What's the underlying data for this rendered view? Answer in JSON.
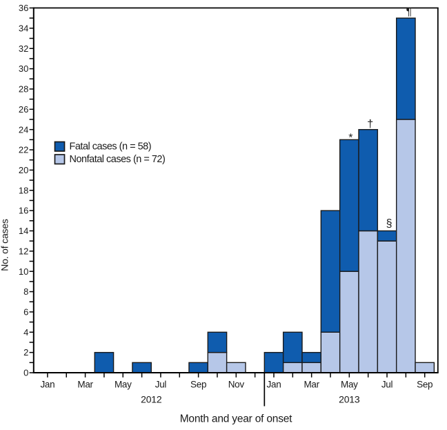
{
  "chart_data": {
    "type": "bar",
    "stacked": true,
    "title": "",
    "xlabel": "Month and year of onset",
    "ylabel": "No. of cases",
    "ylim": [
      0,
      36
    ],
    "ytick_minor_step": 1,
    "ytick_label_step": 2,
    "xtick_label_every": 2,
    "grid": false,
    "legend_position": "upper-left-inside",
    "categories": [
      {
        "month": "Jan",
        "year": "2012"
      },
      {
        "month": "Feb",
        "year": "2012"
      },
      {
        "month": "Mar",
        "year": "2012"
      },
      {
        "month": "Apr",
        "year": "2012"
      },
      {
        "month": "May",
        "year": "2012"
      },
      {
        "month": "Jun",
        "year": "2012"
      },
      {
        "month": "Jul",
        "year": "2012"
      },
      {
        "month": "Aug",
        "year": "2012"
      },
      {
        "month": "Sep",
        "year": "2012"
      },
      {
        "month": "Oct",
        "year": "2012"
      },
      {
        "month": "Nov",
        "year": "2012"
      },
      {
        "month": "Dec",
        "year": "2012"
      },
      {
        "month": "Jan",
        "year": "2013"
      },
      {
        "month": "Feb",
        "year": "2013"
      },
      {
        "month": "Mar",
        "year": "2013"
      },
      {
        "month": "Apr",
        "year": "2013"
      },
      {
        "month": "May",
        "year": "2013"
      },
      {
        "month": "Jun",
        "year": "2013"
      },
      {
        "month": "Jul",
        "year": "2013"
      },
      {
        "month": "Aug",
        "year": "2013"
      },
      {
        "month": "Sep",
        "year": "2013"
      }
    ],
    "series": [
      {
        "name": "Nonfatal cases",
        "legend_label": "Nonfatal cases (n = 72)",
        "color": "#b6c7e8",
        "stack_order": "bottom",
        "values": [
          0,
          0,
          0,
          0,
          0,
          0,
          0,
          0,
          0,
          2,
          1,
          0,
          0,
          1,
          1,
          4,
          10,
          14,
          13,
          25,
          1
        ]
      },
      {
        "name": "Fatal cases",
        "legend_label": "Fatal cases (n = 58)",
        "color": "#0f5cae",
        "stack_order": "top",
        "values": [
          0,
          0,
          0,
          2,
          0,
          1,
          0,
          0,
          1,
          2,
          0,
          0,
          2,
          3,
          1,
          12,
          13,
          10,
          1,
          10,
          0
        ]
      }
    ],
    "year_groups": [
      {
        "label": "2012",
        "from_index": 0,
        "to_index": 11
      },
      {
        "label": "2013",
        "from_index": 12,
        "to_index": 20
      }
    ],
    "divider_after_index": 11,
    "annotations": [
      {
        "category_index": 16,
        "symbol": "*"
      },
      {
        "category_index": 17,
        "symbol": "†"
      },
      {
        "category_index": 18,
        "symbol": "§"
      },
      {
        "category_index": 19,
        "symbol": "¶"
      }
    ],
    "colors": {
      "fatal": "#0f5cae",
      "nonfatal": "#b6c7e8",
      "axis": "#000000",
      "bar_outline": "#1a1a1a",
      "text": "#1a1a1a",
      "background": "#ffffff"
    }
  }
}
